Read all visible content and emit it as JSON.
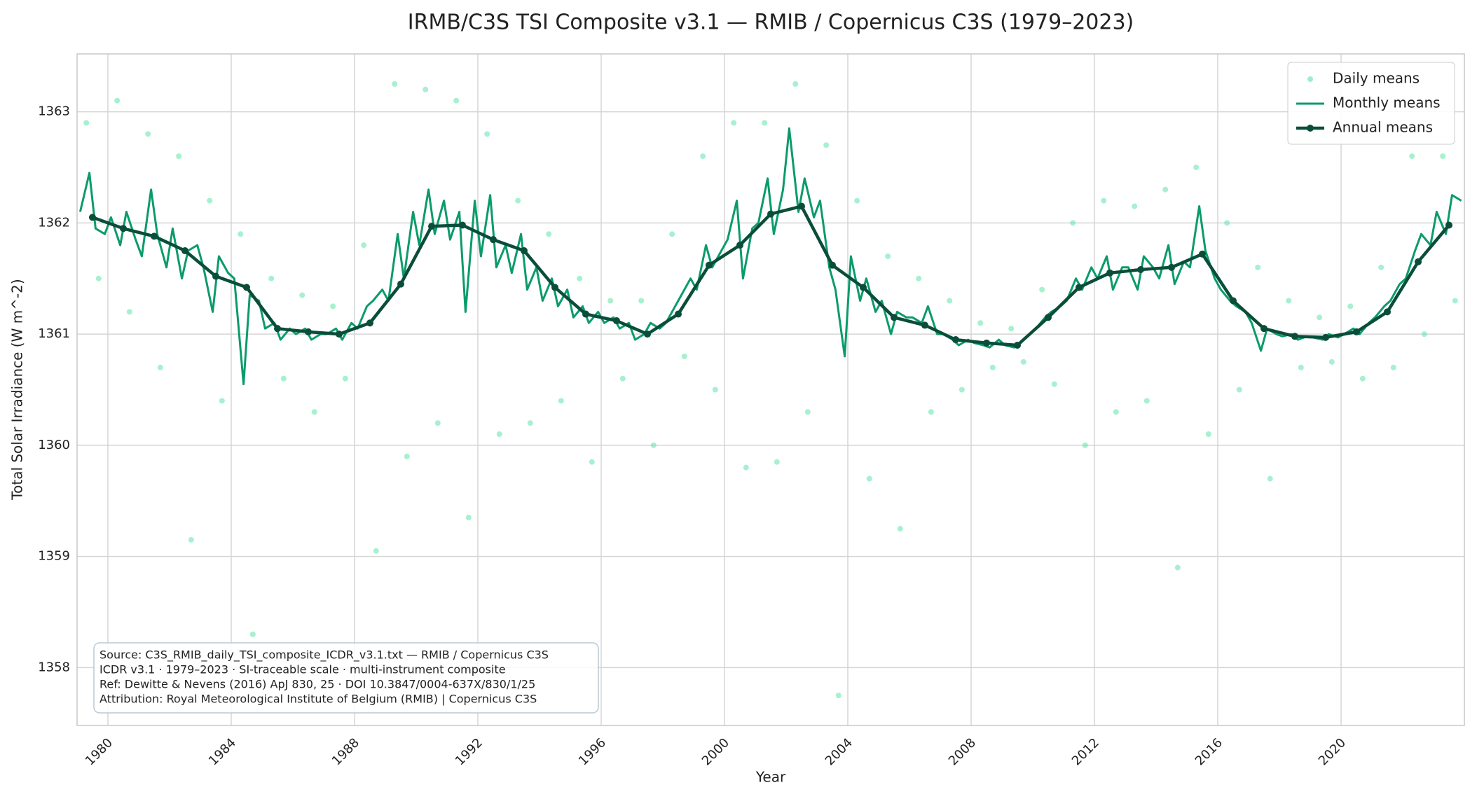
{
  "chart_data": {
    "type": "line",
    "title": "IRMB/C3S TSI Composite v3.1 — RMIB / Copernicus C3S (1979–2023)",
    "x_label": "Year",
    "y_label": "Total Solar Irradiance (W m^-2)",
    "xlim": [
      1979.0,
      2024.0
    ],
    "ylim": [
      1357.48,
      1363.52
    ],
    "xticks": [
      1980,
      1984,
      1988,
      1992,
      1996,
      2000,
      2004,
      2008,
      2012,
      2016,
      2020
    ],
    "yticks": [
      1358,
      1359,
      1360,
      1361,
      1362,
      1363
    ],
    "grid": true,
    "legend": "upper right",
    "annotation": [
      "Source: C3S_RMIB_daily_TSI_composite_ICDR_v3.1.txt — RMIB / Copernicus C3S",
      "ICDR v3.1 · 1979–2023 · SI-traceable scale · multi-instrument composite",
      "Ref: Dewitte & Nevens (2016) ApJ 830, 25 · DOI 10.3847/0004-637X/830/1/25",
      "Attribution: Royal Meteorological Institute of Belgium (RMIB) | Copernicus C3S"
    ],
    "series": [
      {
        "name": "Daily means",
        "type": "scatter",
        "color": "#5ee3a9",
        "x": [
          1979.3,
          1979.7,
          1980.3,
          1980.7,
          1981.3,
          1981.7,
          1982.3,
          1982.7,
          1983.3,
          1983.7,
          1984.3,
          1984.7,
          1985.3,
          1985.7,
          1986.3,
          1986.7,
          1987.3,
          1987.7,
          1988.3,
          1988.7,
          1989.3,
          1989.7,
          1990.3,
          1990.7,
          1991.3,
          1991.7,
          1992.3,
          1992.7,
          1993.3,
          1993.7,
          1994.3,
          1994.7,
          1995.3,
          1995.7,
          1996.3,
          1996.7,
          1997.3,
          1997.7,
          1998.3,
          1998.7,
          1999.3,
          1999.7,
          2000.3,
          2000.7,
          2001.3,
          2001.7,
          2002.3,
          2002.7,
          2003.3,
          2003.7,
          2004.3,
          2004.7,
          2005.3,
          2005.7,
          2006.3,
          2006.7,
          2007.3,
          2007.7,
          2008.3,
          2008.7,
          2009.3,
          2009.7,
          2010.3,
          2010.7,
          2011.3,
          2011.7,
          2012.3,
          2012.7,
          2013.3,
          2013.7,
          2014.3,
          2014.7,
          2015.3,
          2015.7,
          2016.3,
          2016.7,
          2017.3,
          2017.7,
          2018.3,
          2018.7,
          2019.3,
          2019.7,
          2020.3,
          2020.7,
          2021.3,
          2021.7,
          2022.3,
          2022.7,
          2023.3,
          2023.7
        ],
        "values": [
          1362.9,
          1361.5,
          1363.1,
          1361.2,
          1362.8,
          1360.7,
          1362.6,
          1359.15,
          1362.2,
          1360.4,
          1361.9,
          1358.3,
          1361.5,
          1360.6,
          1361.35,
          1360.3,
          1361.25,
          1360.6,
          1361.8,
          1359.05,
          1363.25,
          1359.9,
          1363.2,
          1360.2,
          1363.1,
          1359.35,
          1362.8,
          1360.1,
          1362.2,
          1360.2,
          1361.9,
          1360.4,
          1361.5,
          1359.85,
          1361.3,
          1360.6,
          1361.3,
          1360.0,
          1361.9,
          1360.8,
          1362.6,
          1360.5,
          1362.9,
          1359.8,
          1362.9,
          1359.85,
          1363.25,
          1360.3,
          1362.7,
          1357.75,
          1362.2,
          1359.7,
          1361.7,
          1359.25,
          1361.5,
          1360.3,
          1361.3,
          1360.5,
          1361.1,
          1360.7,
          1361.05,
          1360.75,
          1361.4,
          1360.55,
          1362.0,
          1360.0,
          1362.2,
          1360.3,
          1362.15,
          1360.4,
          1362.3,
          1358.9,
          1362.5,
          1360.1,
          1362.0,
          1360.5,
          1361.6,
          1359.7,
          1361.3,
          1360.7,
          1361.15,
          1360.75,
          1361.25,
          1360.6,
          1361.6,
          1360.7,
          1362.6,
          1361.0,
          1362.6,
          1361.3
        ]
      },
      {
        "name": "Monthly means",
        "type": "line",
        "color": "#0b9b6a",
        "x": [
          1979.1,
          1979.4,
          1979.6,
          1979.9,
          1980.1,
          1980.4,
          1980.6,
          1980.9,
          1981.1,
          1981.4,
          1981.6,
          1981.9,
          1982.1,
          1982.4,
          1982.6,
          1982.9,
          1983.1,
          1983.4,
          1983.6,
          1983.9,
          1984.1,
          1984.4,
          1984.6,
          1984.9,
          1985.1,
          1985.4,
          1985.6,
          1985.9,
          1986.1,
          1986.4,
          1986.6,
          1986.9,
          1987.1,
          1987.4,
          1987.6,
          1987.9,
          1988.1,
          1988.4,
          1988.6,
          1988.9,
          1989.1,
          1989.4,
          1989.6,
          1989.9,
          1990.1,
          1990.4,
          1990.6,
          1990.9,
          1991.1,
          1991.4,
          1991.6,
          1991.9,
          1992.1,
          1992.4,
          1992.6,
          1992.9,
          1993.1,
          1993.4,
          1993.6,
          1993.9,
          1994.1,
          1994.4,
          1994.6,
          1994.9,
          1995.1,
          1995.4,
          1995.6,
          1995.9,
          1996.1,
          1996.4,
          1996.6,
          1996.9,
          1997.1,
          1997.4,
          1997.6,
          1997.9,
          1998.1,
          1998.4,
          1998.6,
          1998.9,
          1999.1,
          1999.4,
          1999.6,
          1999.9,
          2000.1,
          2000.4,
          2000.6,
          2000.9,
          2001.1,
          2001.4,
          2001.6,
          2001.9,
          2002.1,
          2002.4,
          2002.6,
          2002.9,
          2003.1,
          2003.4,
          2003.6,
          2003.9,
          2004.1,
          2004.4,
          2004.6,
          2004.9,
          2005.1,
          2005.4,
          2005.6,
          2005.9,
          2006.1,
          2006.4,
          2006.6,
          2006.9,
          2007.1,
          2007.4,
          2007.6,
          2007.9,
          2008.1,
          2008.4,
          2008.6,
          2008.9,
          2009.1,
          2009.4,
          2009.6,
          2009.9,
          2010.1,
          2010.4,
          2010.6,
          2010.9,
          2011.1,
          2011.4,
          2011.6,
          2011.9,
          2012.1,
          2012.4,
          2012.6,
          2012.9,
          2013.1,
          2013.4,
          2013.6,
          2013.9,
          2014.1,
          2014.4,
          2014.6,
          2014.9,
          2015.1,
          2015.4,
          2015.6,
          2015.9,
          2016.1,
          2016.4,
          2016.6,
          2016.9,
          2017.1,
          2017.4,
          2017.6,
          2017.9,
          2018.1,
          2018.4,
          2018.6,
          2018.9,
          2019.1,
          2019.4,
          2019.6,
          2019.9,
          2020.1,
          2020.4,
          2020.6,
          2020.9,
          2021.1,
          2021.4,
          2021.6,
          2021.9,
          2022.1,
          2022.4,
          2022.6,
          2022.9,
          2023.1,
          2023.4,
          2023.6,
          2023.9
        ],
        "values": [
          1362.1,
          1362.45,
          1361.95,
          1361.9,
          1362.05,
          1361.8,
          1362.1,
          1361.85,
          1361.7,
          1362.3,
          1361.9,
          1361.6,
          1361.95,
          1361.5,
          1361.75,
          1361.8,
          1361.6,
          1361.2,
          1361.7,
          1361.55,
          1361.5,
          1360.55,
          1361.35,
          1361.3,
          1361.05,
          1361.1,
          1360.95,
          1361.05,
          1361.0,
          1361.05,
          1360.95,
          1361.0,
          1361.0,
          1361.05,
          1360.95,
          1361.1,
          1361.05,
          1361.25,
          1361.3,
          1361.4,
          1361.3,
          1361.9,
          1361.5,
          1362.1,
          1361.8,
          1362.3,
          1361.9,
          1362.2,
          1361.85,
          1362.1,
          1361.2,
          1362.2,
          1361.7,
          1362.25,
          1361.6,
          1361.8,
          1361.55,
          1361.9,
          1361.4,
          1361.6,
          1361.3,
          1361.5,
          1361.25,
          1361.4,
          1361.15,
          1361.25,
          1361.1,
          1361.2,
          1361.1,
          1361.15,
          1361.05,
          1361.1,
          1360.95,
          1361.0,
          1361.1,
          1361.05,
          1361.1,
          1361.25,
          1361.35,
          1361.5,
          1361.4,
          1361.8,
          1361.6,
          1361.75,
          1361.85,
          1362.2,
          1361.5,
          1361.95,
          1362.0,
          1362.4,
          1361.9,
          1362.3,
          1362.85,
          1362.1,
          1362.4,
          1362.05,
          1362.2,
          1361.6,
          1361.4,
          1360.8,
          1361.7,
          1361.3,
          1361.5,
          1361.2,
          1361.3,
          1361.0,
          1361.2,
          1361.15,
          1361.15,
          1361.1,
          1361.25,
          1361.0,
          1361.0,
          1360.95,
          1360.9,
          1360.95,
          1360.92,
          1360.9,
          1360.88,
          1360.95,
          1360.9,
          1360.88,
          1360.92,
          1361.0,
          1361.05,
          1361.15,
          1361.2,
          1361.25,
          1361.3,
          1361.5,
          1361.4,
          1361.6,
          1361.5,
          1361.7,
          1361.4,
          1361.6,
          1361.6,
          1361.4,
          1361.7,
          1361.6,
          1361.5,
          1361.8,
          1361.45,
          1361.65,
          1361.6,
          1362.15,
          1361.75,
          1361.5,
          1361.4,
          1361.3,
          1361.25,
          1361.2,
          1361.1,
          1360.85,
          1361.05,
          1361.0,
          1360.98,
          1361.0,
          1360.95,
          1360.98,
          1360.97,
          1360.95,
          1361.0,
          1360.97,
          1361.0,
          1361.05,
          1361.0,
          1361.1,
          1361.15,
          1361.25,
          1361.3,
          1361.45,
          1361.5,
          1361.75,
          1361.9,
          1361.8,
          1362.1,
          1361.9,
          1362.25,
          1362.2
        ]
      },
      {
        "name": "Annual means",
        "type": "line",
        "marker": true,
        "color": "#0a4d3a",
        "x": [
          1979.5,
          1980.5,
          1981.5,
          1982.5,
          1983.5,
          1984.5,
          1985.5,
          1986.5,
          1987.5,
          1988.5,
          1989.5,
          1990.5,
          1991.5,
          1992.5,
          1993.5,
          1994.5,
          1995.5,
          1996.5,
          1997.5,
          1998.5,
          1999.5,
          2000.5,
          2001.5,
          2002.5,
          2003.5,
          2004.5,
          2005.5,
          2006.5,
          2007.5,
          2008.5,
          2009.5,
          2010.5,
          2011.5,
          2012.5,
          2013.5,
          2014.5,
          2015.5,
          2016.5,
          2017.5,
          2018.5,
          2019.5,
          2020.5,
          2021.5,
          2022.5,
          2023.5
        ],
        "values": [
          1362.05,
          1361.95,
          1361.88,
          1361.75,
          1361.52,
          1361.42,
          1361.05,
          1361.02,
          1361.0,
          1361.1,
          1361.45,
          1361.97,
          1361.98,
          1361.85,
          1361.75,
          1361.42,
          1361.18,
          1361.12,
          1361.0,
          1361.18,
          1361.62,
          1361.8,
          1362.08,
          1362.15,
          1361.62,
          1361.42,
          1361.15,
          1361.08,
          1360.95,
          1360.92,
          1360.9,
          1361.15,
          1361.42,
          1361.55,
          1361.58,
          1361.6,
          1361.72,
          1361.3,
          1361.05,
          1360.98,
          1360.97,
          1361.02,
          1361.2,
          1361.65,
          1361.98
        ]
      }
    ]
  }
}
